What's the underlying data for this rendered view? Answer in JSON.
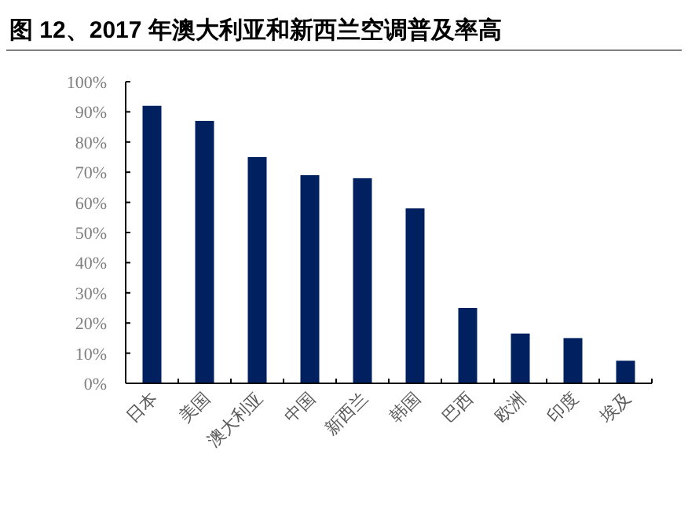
{
  "chart_data": {
    "type": "bar",
    "title": "图 12、2017 年澳大利亚和新西兰空调普及率高",
    "categories": [
      "日本",
      "美国",
      "澳大利亚",
      "中国",
      "新西兰",
      "韩国",
      "巴西",
      "欧洲",
      "印度",
      "埃及"
    ],
    "values": [
      92,
      87,
      75,
      69,
      68,
      58,
      25,
      16.5,
      15,
      7.5
    ],
    "color": "#002060",
    "ylim": [
      0,
      100
    ],
    "yticks": [
      {
        "value": 0,
        "label": "0%"
      },
      {
        "value": 10,
        "label": "10%"
      },
      {
        "value": 20,
        "label": "20%"
      },
      {
        "value": 30,
        "label": "30%"
      },
      {
        "value": 40,
        "label": "40%"
      },
      {
        "value": 50,
        "label": "50%"
      },
      {
        "value": 60,
        "label": "60%"
      },
      {
        "value": 70,
        "label": "70%"
      },
      {
        "value": 80,
        "label": "80%"
      },
      {
        "value": 90,
        "label": "90%"
      },
      {
        "value": 100,
        "label": "100%"
      }
    ],
    "grid": false
  }
}
